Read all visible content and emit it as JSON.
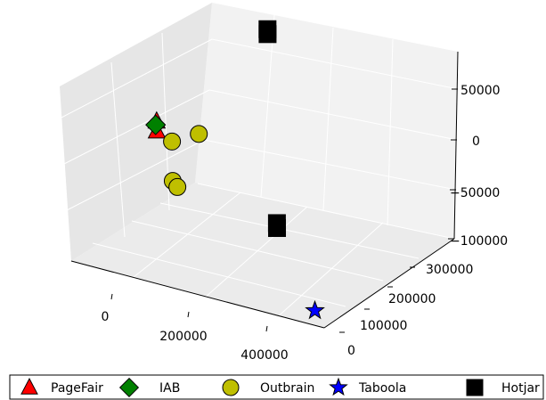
{
  "chart_data": {
    "type": "scatter",
    "projection": "3d",
    "grid": true,
    "legend": "bottom",
    "x_ticks": [
      "0",
      "200000",
      "400000"
    ],
    "y_ticks": [
      "0",
      "100000",
      "200000",
      "300000"
    ],
    "z_ticks": [
      "50000",
      "0",
      "−50000",
      "−100000"
    ],
    "series": [
      {
        "name": "PageFair",
        "marker": "triangle",
        "color": "#ff0000",
        "points": [
          {
            "x": -60000,
            "y": 330000,
            "z": -10000
          },
          {
            "x": -60000,
            "y": 330000,
            "z": -20000
          }
        ]
      },
      {
        "name": "IAB",
        "marker": "diamond",
        "color": "#008000",
        "points": [
          {
            "x": -65000,
            "y": 335000,
            "z": -15000
          }
        ]
      },
      {
        "name": "Outbrain",
        "marker": "circle",
        "color": "#bfbf00",
        "points": [
          {
            "x": 60000,
            "y": 280000,
            "z": 0
          },
          {
            "x": 0,
            "y": 280000,
            "z": -15000
          },
          {
            "x": 0,
            "y": 280000,
            "z": -55000
          },
          {
            "x": 10000,
            "y": 280000,
            "z": -60000
          }
        ]
      },
      {
        "name": "Taboola",
        "marker": "star",
        "color": "#0000ff",
        "points": [
          {
            "x": 460000,
            "y": 0,
            "z": -85000
          }
        ]
      },
      {
        "name": "Hotjar",
        "marker": "square",
        "color": "#000000",
        "points": [
          {
            "x": 100000,
            "y": 500000,
            "z": 75000
          },
          {
            "x": 100000,
            "y": 500000,
            "z": 70000
          },
          {
            "x": 230000,
            "y": 280000,
            "z": -70000
          },
          {
            "x": 230000,
            "y": 280000,
            "z": -75000
          }
        ]
      }
    ]
  }
}
